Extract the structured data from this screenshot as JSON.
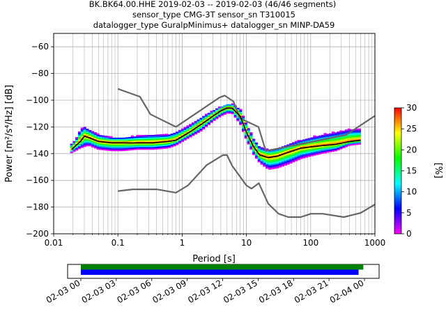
{
  "title": {
    "line1": "BK.BK64.00.HHE   2019-02-03 -- 2019-02-03  (46/46 segments)",
    "line2": "sensor_type CMG-3T sensor_sn T310015",
    "line3": "datalogger_type GuralpMinimus+ datalogger_sn MINP-DA59"
  },
  "chart_data": [
    {
      "type": "heatmap",
      "xlabel": "Period [s]",
      "ylabel": "Power [m²/s⁴/Hz] [dB]",
      "x_scale": "log",
      "xlim": [
        0.01,
        1000
      ],
      "ylim": [
        -200,
        -50
      ],
      "x_ticks": [
        0.01,
        0.1,
        1,
        10,
        100,
        1000
      ],
      "x_tick_labels": [
        "0.01",
        "0.1",
        "1",
        "10",
        "100",
        "1000"
      ],
      "y_ticks": [
        -200,
        -180,
        -160,
        -140,
        -120,
        -100,
        -80,
        -60
      ],
      "y_tick_labels": [
        "−200",
        "−180",
        "−160",
        "−140",
        "−120",
        "−100",
        "−80",
        "−60"
      ],
      "grid": true,
      "colorbar": {
        "label": "[%]",
        "range": [
          0,
          30
        ],
        "ticks": [
          0,
          5,
          10,
          15,
          20,
          25,
          30
        ],
        "tick_labels": [
          "0",
          "5",
          "10",
          "15",
          "20",
          "25",
          "30"
        ],
        "colormap": [
          "#ff00ff",
          "#0000ff",
          "#00ffff",
          "#00ff00",
          "#ffff00",
          "#ff0000"
        ]
      },
      "mode_line": {
        "color": "#000000",
        "period": [
          0.019,
          0.022,
          0.026,
          0.03,
          0.035,
          0.05,
          0.08,
          0.12,
          0.2,
          0.35,
          0.6,
          0.8,
          1.2,
          2,
          3,
          4,
          5,
          6,
          8,
          10,
          13,
          16,
          22,
          30,
          45,
          70,
          100,
          150,
          250,
          400,
          600
        ],
        "power": [
          -137,
          -134,
          -131,
          -127,
          -128,
          -131,
          -132,
          -132,
          -132,
          -132,
          -131,
          -130,
          -125,
          -118,
          -112,
          -108,
          -106,
          -106,
          -112,
          -124,
          -135,
          -141,
          -143,
          -142,
          -139,
          -136,
          -135,
          -134,
          -133,
          -131,
          -130
        ]
      },
      "nhnm": {
        "color": "#666666",
        "period": [
          0.1,
          0.22,
          0.32,
          0.8,
          3.8,
          4.6,
          6.3,
          7.9,
          15.4,
          20,
          354.8,
          10000
        ],
        "power": [
          -91.5,
          -97.4,
          -110.5,
          -120,
          -98,
          -96.5,
          -101,
          -113.5,
          -120,
          -138,
          -126,
          -80
        ]
      },
      "nlnm": {
        "color": "#666666",
        "period": [
          0.1,
          0.17,
          0.4,
          0.8,
          1.24,
          2.4,
          4.3,
          5,
          6,
          10,
          12,
          15.6,
          21.9,
          31.6,
          45,
          70,
          101,
          154,
          328,
          600,
          1000
        ],
        "power": [
          -168,
          -166.7,
          -166.7,
          -169.2,
          -163.7,
          -148.6,
          -141.1,
          -141.1,
          -149,
          -163.8,
          -166.2,
          -162.1,
          -177.5,
          -185,
          -187.5,
          -187.5,
          -185,
          -185,
          -187.5,
          -184.4,
          -178
        ]
      },
      "pdf_band": {
        "period": [
          0.018,
          0.022,
          0.026,
          0.03,
          0.035,
          0.05,
          0.08,
          0.12,
          0.2,
          0.35,
          0.6,
          0.8,
          1.2,
          2,
          3,
          4,
          5,
          6,
          8,
          10,
          13,
          16,
          22,
          30,
          45,
          70,
          100,
          150,
          250,
          400,
          600
        ],
        "power_min": [
          -140,
          -138,
          -136,
          -135,
          -134,
          -137,
          -138,
          -138,
          -137,
          -137,
          -136,
          -134,
          -129,
          -123,
          -116,
          -112,
          -110,
          -110,
          -118,
          -130,
          -141,
          -147,
          -152,
          -151,
          -148,
          -144,
          -142,
          -140,
          -138,
          -134,
          -133
        ],
        "power_max": [
          -134,
          -130,
          -122,
          -120,
          -122,
          -126,
          -128,
          -128,
          -127,
          -126,
          -126,
          -124,
          -120,
          -113,
          -108,
          -105,
          -103,
          -103,
          -107,
          -118,
          -129,
          -135,
          -137,
          -136,
          -133,
          -130,
          -128,
          -126,
          -124,
          -122,
          -122
        ]
      }
    },
    {
      "type": "bar",
      "x_ticks": [
        "02-03 00",
        "02-03 03",
        "02-03 06",
        "02-03 09",
        "02-03 12",
        "02-03 15",
        "02-03 18",
        "02-03 21",
        "02-04 00"
      ],
      "series": [
        {
          "color": "#008000",
          "start_hour": 0,
          "end_hour": 23.9
        },
        {
          "color": "#0000ff",
          "start_hour": 0,
          "end_hour": 23.5
        }
      ]
    }
  ]
}
